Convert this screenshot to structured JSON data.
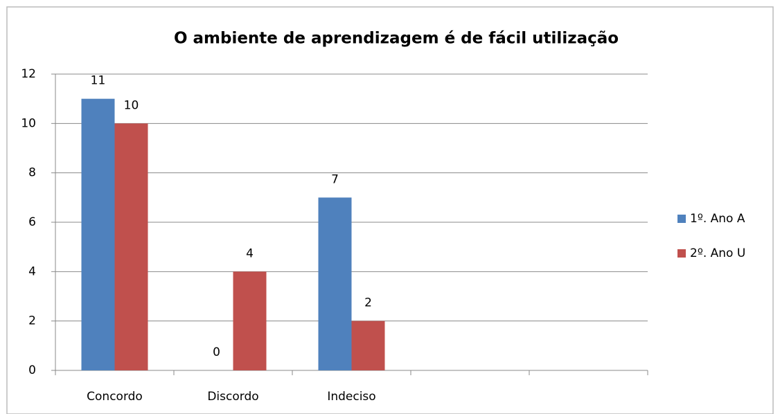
{
  "chart_data": {
    "type": "bar",
    "title": "O ambiente de aprendizagem é de fácil utilização",
    "categories": [
      "Concordo",
      "Discordo",
      "Indeciso",
      null,
      null
    ],
    "series": [
      {
        "name": "1º. Ano A",
        "color": "#4f81bd",
        "values": [
          11,
          0,
          7,
          null,
          null
        ]
      },
      {
        "name": "2º. Ano U",
        "color": "#c0504d",
        "values": [
          10,
          4,
          2,
          null,
          null
        ]
      }
    ],
    "ylim": [
      0,
      12
    ],
    "yticks": [
      0,
      2,
      4,
      6,
      8,
      10,
      12
    ],
    "grid": true,
    "legend": "right"
  }
}
